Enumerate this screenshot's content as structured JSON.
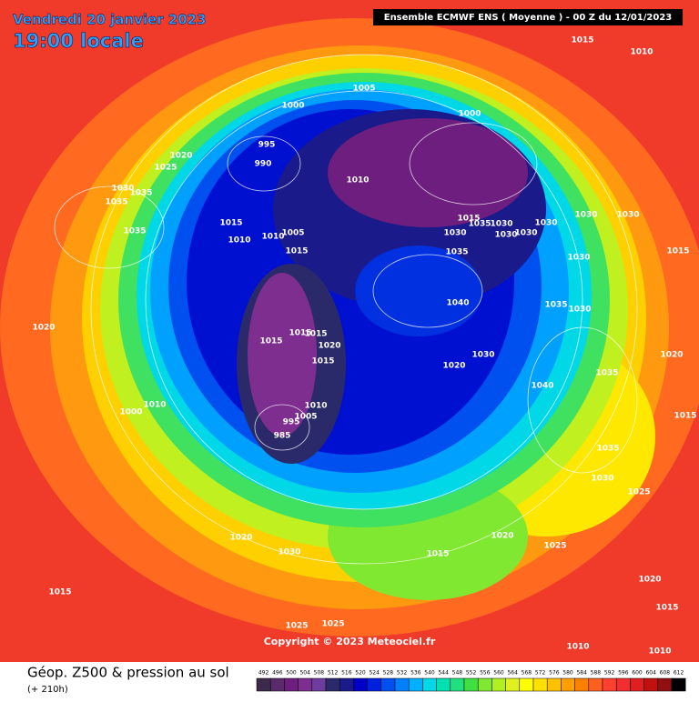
{
  "header": {
    "date": "Vendredi 20 janvier 2023",
    "time": "19:00 locale",
    "model": "Ensemble ECMWF ENS  ( Moyenne )  -  00 Z du 12/01/2023"
  },
  "footer": {
    "title": "Géop. Z500 & pression au sol",
    "lead": "(+ 210h)",
    "copyright": "Copyright © 2023 Meteociel.fr"
  },
  "scale": {
    "values": [
      492,
      496,
      500,
      504,
      508,
      512,
      516,
      520,
      524,
      528,
      532,
      536,
      540,
      544,
      548,
      552,
      556,
      560,
      564,
      568,
      572,
      576,
      580,
      584,
      588,
      592,
      596,
      600,
      604,
      608,
      612
    ],
    "colors": [
      "#3c2a4a",
      "#5a2a6a",
      "#6e1e7e",
      "#7e2e8e",
      "#6e3c9e",
      "#2a2a6a",
      "#1a1a8a",
      "#0000c8",
      "#0020e0",
      "#0050f0",
      "#0080ff",
      "#00b0ff",
      "#00d8e8",
      "#00e0b0",
      "#20e080",
      "#40e040",
      "#80e830",
      "#b0f020",
      "#e0f020",
      "#ffff00",
      "#ffe000",
      "#ffc000",
      "#ffa000",
      "#ff8000",
      "#ff6020",
      "#ff4030",
      "#f03030",
      "#e02020",
      "#c01010",
      "#901010",
      "#000000"
    ]
  },
  "isobars": [
    "1015",
    "1010",
    "1005",
    "1000",
    "1000",
    "995",
    "990",
    "1020",
    "1025",
    "1010",
    "1030",
    "1035",
    "1035",
    "1035",
    "1015",
    "1010",
    "1010",
    "1005",
    "1015",
    "1015",
    "1035",
    "1030",
    "1030",
    "1030",
    "1030",
    "1030",
    "1030",
    "1030",
    "1035",
    "1015",
    "1030",
    "1040",
    "1035",
    "1030",
    "1020",
    "1015",
    "1015",
    "1015",
    "1020",
    "1015",
    "1030",
    "1020",
    "1040",
    "1035",
    "1000",
    "1010",
    "1010",
    "1005",
    "995",
    "985",
    "1035",
    "1030",
    "1025",
    "1020",
    "1030",
    "1015",
    "1020",
    "1025",
    "1015",
    "1020",
    "1015",
    "1025",
    "1025",
    "1010",
    "1010",
    "1020",
    "1015"
  ]
}
